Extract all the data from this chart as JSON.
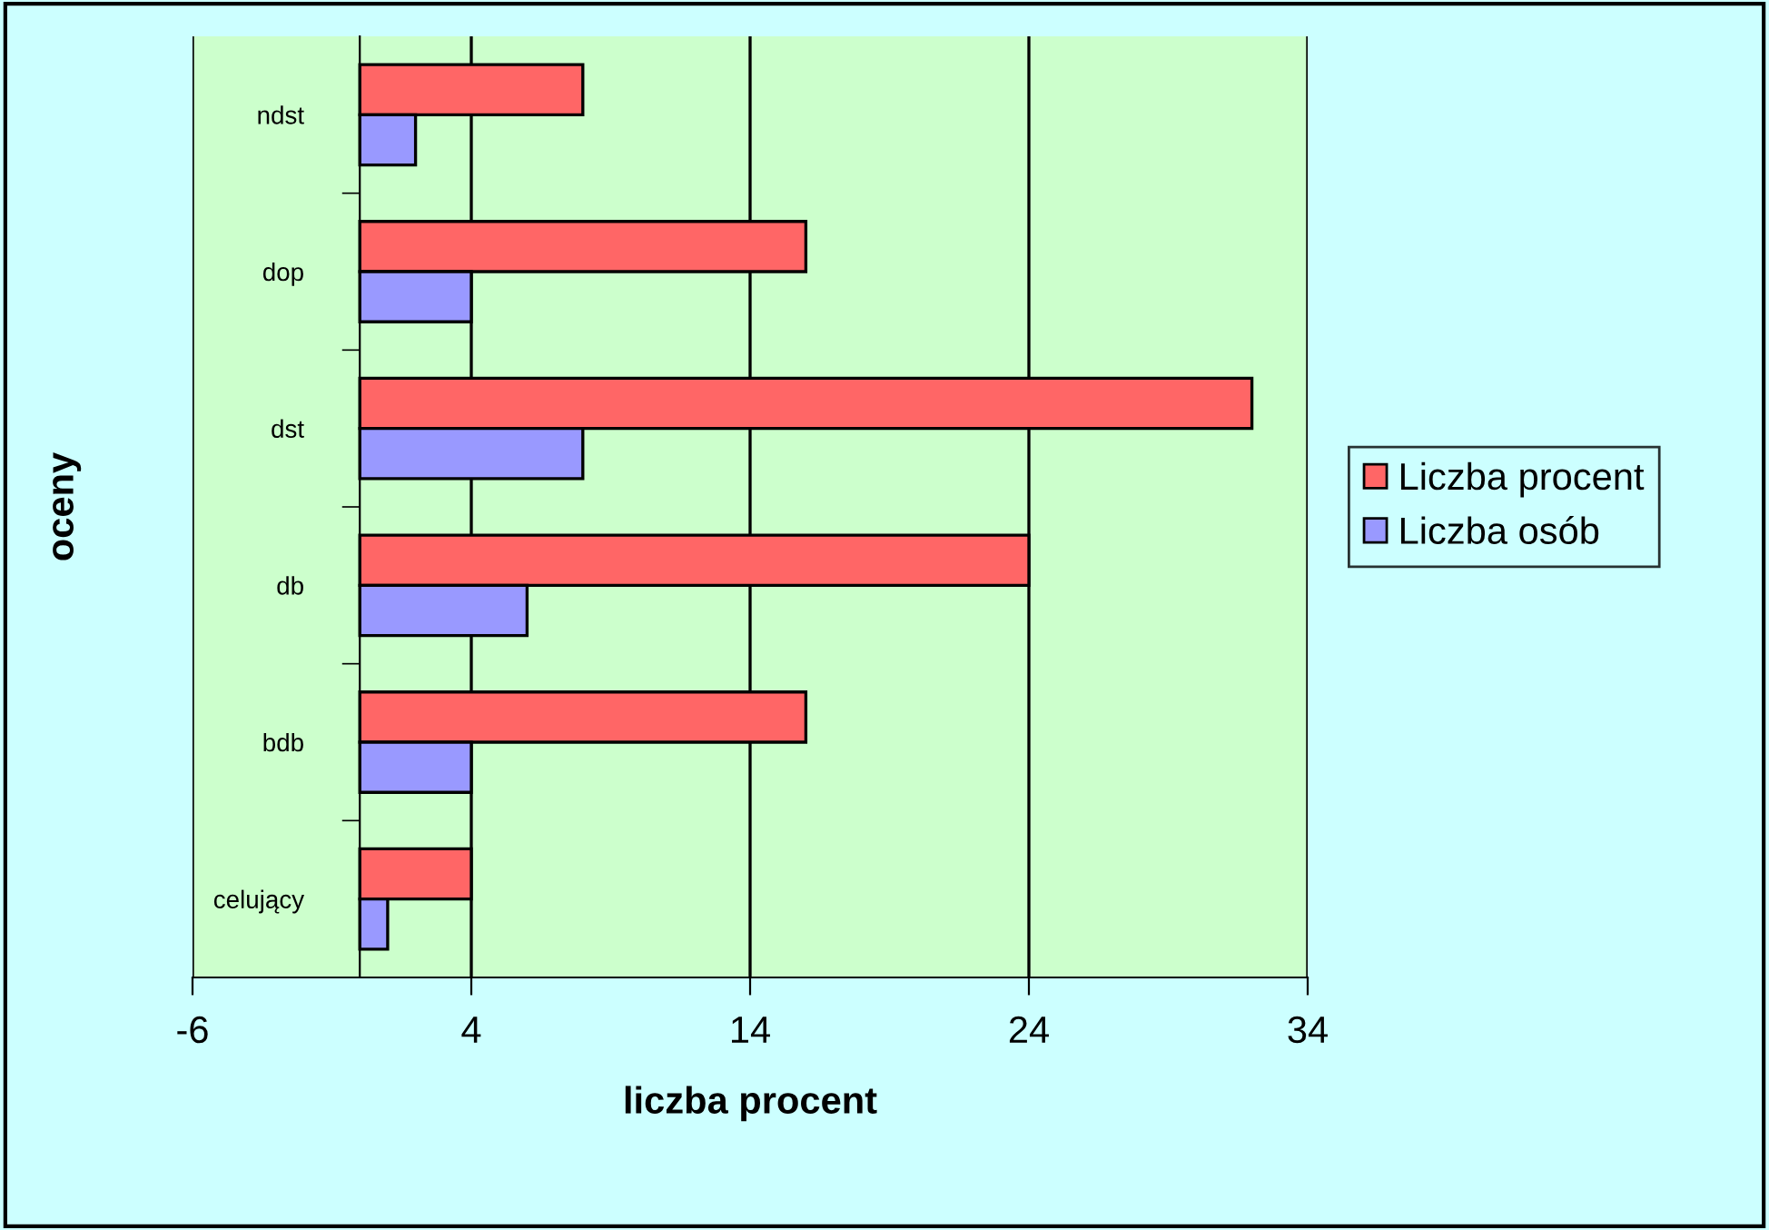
{
  "chart_data": {
    "type": "bar",
    "orientation": "horizontal",
    "xlabel": "liczba procent",
    "ylabel": "oceny",
    "categories": [
      "ndst",
      "dop",
      "dst",
      "db",
      "bdb",
      "celujący"
    ],
    "series": [
      {
        "name": "Liczba procent",
        "color": "#ff6666",
        "values": [
          8,
          16,
          32,
          24,
          16,
          4
        ]
      },
      {
        "name": "Liczba osób",
        "color": "#9999ff",
        "values": [
          2,
          4,
          8,
          6,
          4,
          1
        ]
      }
    ],
    "xlim": [
      -6,
      34
    ],
    "xticks": [
      -6,
      4,
      14,
      24,
      34
    ],
    "grid": "x",
    "legend": "right"
  }
}
